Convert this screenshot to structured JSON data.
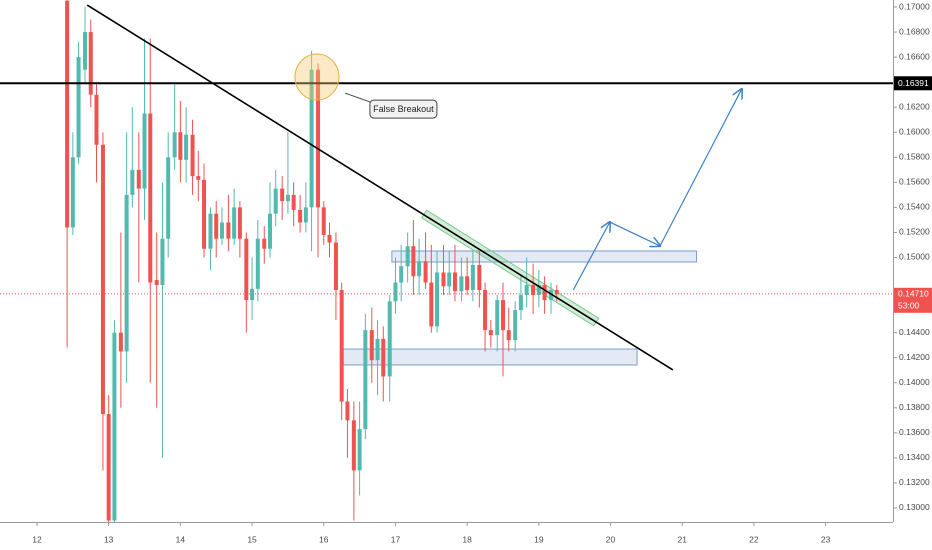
{
  "chart_data": {
    "type": "candlestick",
    "x": [
      12.42,
      12.5,
      12.58,
      12.67,
      12.75,
      12.83,
      12.92,
      13,
      13.08,
      13.17,
      13.25,
      13.33,
      13.42,
      13.5,
      13.58,
      13.67,
      13.75,
      13.83,
      13.92,
      14,
      14.08,
      14.17,
      14.25,
      14.33,
      14.42,
      14.5,
      14.58,
      14.67,
      14.75,
      14.83,
      14.92,
      15,
      15.08,
      15.17,
      15.25,
      15.33,
      15.42,
      15.5,
      15.58,
      15.67,
      15.75,
      15.83,
      15.92,
      16,
      16.08,
      16.17,
      16.25,
      16.33,
      16.42,
      16.5,
      16.58,
      16.67,
      16.75,
      16.83,
      16.92,
      17,
      17.08,
      17.17,
      17.25,
      17.33,
      17.42,
      17.5,
      17.58,
      17.67,
      17.75,
      17.83,
      17.92,
      18,
      18.08,
      18.17,
      18.25,
      18.33,
      18.42,
      18.5,
      18.58,
      18.67,
      18.75,
      18.83,
      18.92,
      19,
      19.08,
      19.17,
      19.25
    ],
    "open": [
      0.1705,
      0.1524,
      0.158,
      0.165,
      0.168,
      0.163,
      0.159,
      0.1375,
      0.129,
      0.144,
      0.1425,
      0.155,
      0.157,
      0.1555,
      0.1615,
      0.1482,
      0.1478,
      0.1515,
      0.158,
      0.16,
      0.1578,
      0.1598,
      0.1565,
      0.1562,
      0.1507,
      0.1535,
      0.1515,
      0.1528,
      0.1515,
      0.154,
      0.1515,
      0.1466,
      0.1475,
      0.1515,
      0.1507,
      0.1535,
      0.1555,
      0.1545,
      0.155,
      0.1538,
      0.1528,
      0.154,
      0.165,
      0.154,
      0.1518,
      0.1512,
      0.1474,
      0.1385,
      0.137,
      0.133,
      0.1363,
      0.1442,
      0.1418,
      0.1435,
      0.1405,
      0.1465,
      0.148,
      0.1493,
      0.1509,
      0.1485,
      0.1497,
      0.148,
      0.1445,
      0.1488,
      0.1477,
      0.1488,
      0.1473,
      0.1485,
      0.1474,
      0.1494,
      0.1474,
      0.1442,
      0.1438,
      0.1466,
      0.1442,
      0.1434,
      0.1458,
      0.147,
      0.1478,
      0.147,
      0.1478,
      0.1466,
      0.1474
    ],
    "high": [
      0.1706,
      0.16,
      0.1672,
      0.17,
      0.169,
      0.164,
      0.16,
      0.139,
      0.145,
      0.152,
      0.16,
      0.162,
      0.16,
      0.1675,
      0.1675,
      0.152,
      0.156,
      0.16,
      0.164,
      0.1625,
      0.162,
      0.161,
      0.1585,
      0.1575,
      0.154,
      0.1545,
      0.154,
      0.155,
      0.1555,
      0.1545,
      0.152,
      0.15,
      0.153,
      0.1525,
      0.156,
      0.157,
      0.1565,
      0.16,
      0.156,
      0.155,
      0.156,
      0.1665,
      0.1655,
      0.1545,
      0.1528,
      0.152,
      0.148,
      0.1395,
      0.1385,
      0.1385,
      0.1455,
      0.146,
      0.145,
      0.1445,
      0.147,
      0.15,
      0.151,
      0.152,
      0.153,
      0.1515,
      0.152,
      0.151,
      0.1505,
      0.151,
      0.1505,
      0.151,
      0.15,
      0.15,
      0.1505,
      0.1505,
      0.148,
      0.145,
      0.147,
      0.148,
      0.146,
      0.1465,
      0.1485,
      0.15,
      0.1495,
      0.149,
      0.1485,
      0.148,
      0.1478
    ],
    "low": [
      0.1428,
      0.1518,
      0.1575,
      0.164,
      0.162,
      0.156,
      0.133,
      0.1288,
      0.1288,
      0.138,
      0.14,
      0.154,
      0.148,
      0.153,
      0.14,
      0.138,
      0.134,
      0.15,
      0.157,
      0.156,
      0.156,
      0.155,
      0.1545,
      0.15,
      0.149,
      0.15,
      0.151,
      0.1505,
      0.151,
      0.15,
      0.144,
      0.145,
      0.1465,
      0.1495,
      0.15,
      0.1525,
      0.153,
      0.1535,
      0.1525,
      0.152,
      0.152,
      0.1505,
      0.15,
      0.151,
      0.15,
      0.145,
      0.137,
      0.134,
      0.129,
      0.131,
      0.1355,
      0.14,
      0.139,
      0.1385,
      0.1385,
      0.1455,
      0.1465,
      0.148,
      0.147,
      0.147,
      0.1475,
      0.144,
      0.144,
      0.147,
      0.147,
      0.1465,
      0.1465,
      0.147,
      0.1465,
      0.146,
      0.1425,
      0.1428,
      0.1425,
      0.1405,
      0.1425,
      0.1425,
      0.145,
      0.146,
      0.1455,
      0.146,
      0.1455,
      0.1455,
      0.1465
    ],
    "close": [
      0.1524,
      0.158,
      0.166,
      0.168,
      0.163,
      0.159,
      0.1375,
      0.129,
      0.144,
      0.1425,
      0.155,
      0.157,
      0.1555,
      0.1615,
      0.148,
      0.1478,
      0.1515,
      0.158,
      0.16,
      0.1578,
      0.1598,
      0.1565,
      0.1562,
      0.1507,
      0.1535,
      0.1515,
      0.1528,
      0.1515,
      0.154,
      0.1515,
      0.1466,
      0.1475,
      0.1515,
      0.1507,
      0.1535,
      0.1555,
      0.1545,
      0.155,
      0.1538,
      0.1528,
      0.154,
      0.165,
      0.154,
      0.1518,
      0.1512,
      0.1474,
      0.1385,
      0.137,
      0.133,
      0.1363,
      0.1442,
      0.1418,
      0.1435,
      0.1405,
      0.1465,
      0.148,
      0.1493,
      0.1509,
      0.1485,
      0.1497,
      0.148,
      0.1445,
      0.1488,
      0.1477,
      0.1488,
      0.1473,
      0.1485,
      0.1474,
      0.1494,
      0.1474,
      0.1442,
      0.1438,
      0.1466,
      0.1442,
      0.1434,
      0.1458,
      0.147,
      0.1478,
      0.147,
      0.1478,
      0.1466,
      0.1474,
      0.1471
    ],
    "up_color": "#53b9ae",
    "down_color": "#ef5350",
    "xlim": [
      11.484,
      23.94
    ],
    "xticks": [
      12,
      13,
      14,
      15,
      16,
      17,
      18,
      19,
      20,
      21,
      22,
      23
    ],
    "ylim": [
      0.12888,
      0.17056
    ],
    "yticks": [
      {
        "value": 0.17,
        "label": "0.17000"
      },
      {
        "value": 0.168,
        "label": "0.16800"
      },
      {
        "value": 0.166,
        "label": "0.16600"
      },
      {
        "value": 0.162,
        "label": "0.16200"
      },
      {
        "value": 0.16,
        "label": "0.16000"
      },
      {
        "value": 0.158,
        "label": "0.15800"
      },
      {
        "value": 0.156,
        "label": "0.15600"
      },
      {
        "value": 0.154,
        "label": "0.15400"
      },
      {
        "value": 0.152,
        "label": "0.15200"
      },
      {
        "value": 0.15,
        "label": "0.15000"
      },
      {
        "value": 0.144,
        "label": "0.14400"
      },
      {
        "value": 0.142,
        "label": "0.14200"
      },
      {
        "value": 0.14,
        "label": "0.14000"
      },
      {
        "value": 0.138,
        "label": "0.13800"
      },
      {
        "value": 0.136,
        "label": "0.13600"
      },
      {
        "value": 0.134,
        "label": "0.13400"
      },
      {
        "value": 0.132,
        "label": "0.13200"
      },
      {
        "value": 0.13,
        "label": "0.13000"
      }
    ],
    "grid": false,
    "horizontal_line": {
      "value": 0.16391,
      "label": "0.16391",
      "color": "#000000"
    },
    "last_price": {
      "value": 0.1471,
      "label": "0.14710",
      "countdown": "53:00",
      "color": "#ef5350"
    },
    "trendline": {
      "x": [
        12.7,
        20.87
      ],
      "y": [
        0.17016,
        0.14102
      ],
      "color": "#000000"
    },
    "channel": {
      "x": [
        17.4,
        19.8
      ],
      "y": [
        0.15347,
        0.14485
      ],
      "color": "#7fc98f"
    },
    "zones": [
      {
        "x": [
          16.95,
          21.2
        ],
        "y": [
          0.15052,
          0.14964
        ]
      },
      {
        "x": [
          16.27,
          20.37
        ],
        "y": [
          0.14269,
          0.14142
        ]
      }
    ],
    "arrows": {
      "x": [
        19.48,
        19.99,
        20.69,
        21.83
      ],
      "y": [
        0.14741,
        0.15283,
        0.15092,
        0.16345
      ],
      "color": "#3a83c9"
    },
    "highlight": {
      "x": 15.905,
      "y": 0.16441
    },
    "callout": {
      "text": "False Breakout",
      "x": 16.644,
      "y": 0.16257,
      "pointer_x": 16.296,
      "pointer_y": 0.16313
    }
  }
}
